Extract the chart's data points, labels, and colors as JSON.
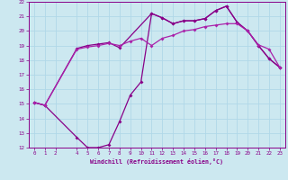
{
  "xlabel": "Windchill (Refroidissement éolien,°C)",
  "bg_color": "#cce8f0",
  "grid_color": "#b0d8e8",
  "line_color1": "#880088",
  "line_color2": "#aa22aa",
  "xlim": [
    -0.5,
    23.5
  ],
  "ylim": [
    12,
    22
  ],
  "yticks": [
    12,
    13,
    14,
    15,
    16,
    17,
    18,
    19,
    20,
    21,
    22
  ],
  "xticks": [
    0,
    1,
    2,
    4,
    5,
    6,
    7,
    8,
    9,
    10,
    11,
    12,
    13,
    14,
    15,
    16,
    17,
    18,
    19,
    20,
    21,
    22,
    23
  ],
  "line1_x": [
    0,
    1,
    4,
    5,
    6,
    7,
    8,
    11,
    12,
    13,
    14,
    15,
    16,
    17,
    18,
    19,
    20,
    21,
    22,
    23
  ],
  "line1_y": [
    15.1,
    14.9,
    18.8,
    19.0,
    19.1,
    19.2,
    18.85,
    21.2,
    20.9,
    20.5,
    20.7,
    20.7,
    20.85,
    21.4,
    21.7,
    20.6,
    20.0,
    19.0,
    18.1,
    17.5
  ],
  "line2_x": [
    0,
    1,
    4,
    5,
    6,
    7,
    8,
    9,
    10,
    11,
    12,
    13,
    14,
    15,
    16,
    17,
    18,
    19,
    20,
    21,
    22,
    23
  ],
  "line2_y": [
    15.1,
    14.9,
    18.75,
    18.9,
    19.0,
    19.15,
    19.0,
    19.3,
    19.5,
    19.0,
    19.5,
    19.7,
    20.0,
    20.1,
    20.3,
    20.4,
    20.5,
    20.5,
    20.0,
    19.05,
    18.75,
    17.5
  ],
  "line3_x": [
    0,
    1,
    4,
    5,
    6,
    7,
    8,
    9,
    10,
    11,
    12,
    13,
    14,
    15,
    16,
    17,
    18,
    19,
    20,
    21,
    22,
    23
  ],
  "line3_y": [
    15.1,
    14.9,
    12.7,
    12.0,
    12.0,
    12.2,
    13.8,
    15.6,
    16.5,
    21.2,
    20.9,
    20.5,
    20.7,
    20.7,
    20.85,
    21.4,
    21.7,
    20.6,
    20.0,
    19.0,
    18.1,
    17.5
  ]
}
